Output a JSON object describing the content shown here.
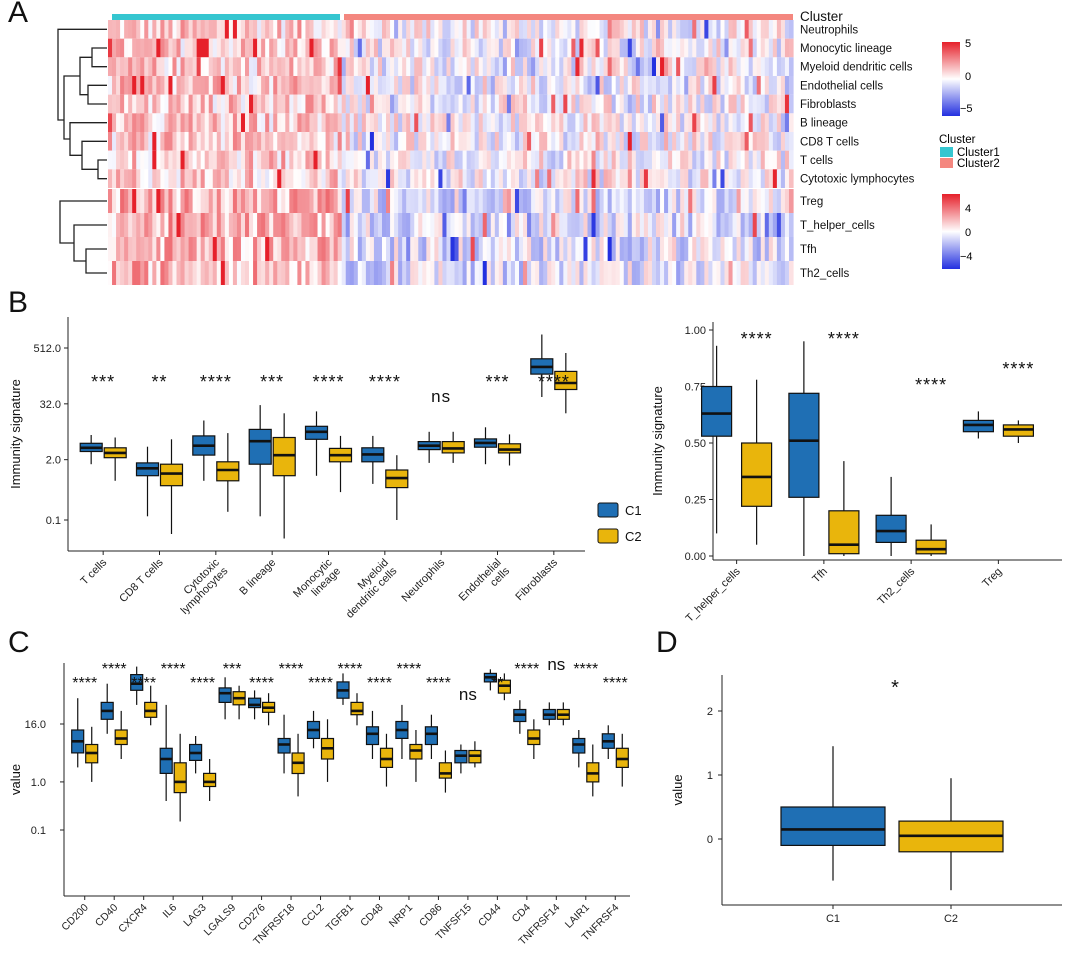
{
  "colors": {
    "c1": "#1f6fb4",
    "c2": "#e9b50c",
    "cluster1": "#35c6d0",
    "cluster2": "#f4877f",
    "heat_low": "#2330e0",
    "heat_mid": "#ffffff",
    "heat_high": "#e6202a"
  },
  "panels": {
    "a": "A",
    "b": "B",
    "c": "C",
    "d": "D"
  },
  "heatmap": {
    "cluster_title": "Cluster",
    "top_rows": [
      "Neutrophils",
      "Monocytic lineage",
      "Myeloid dendritic cells",
      "Endothelial cells",
      "Fibroblasts",
      "B lineage",
      "CD8 T cells",
      "T cells",
      "Cytotoxic lymphocytes"
    ],
    "bottom_rows": [
      "Treg",
      "T_helper_cells",
      "Tfh",
      "Th2_cells"
    ],
    "legend1_ticks": [
      "5",
      "0",
      "−5"
    ],
    "legend2_ticks": [
      "4",
      "0",
      "−4"
    ],
    "cluster_legend_title": "Cluster",
    "cluster_legend_items": [
      "Cluster1",
      "Cluster2"
    ]
  },
  "chart_data": [
    {
      "id": "B-left",
      "type": "box",
      "ylabel": "Immunity signature",
      "scale": "log",
      "yticks": [
        "512.0",
        "32.0",
        "2.0",
        "0.1"
      ],
      "ytick_values": [
        512,
        32,
        2,
        0.1
      ],
      "categories": [
        "T cells",
        "CD8 T cells",
        "Cytotoxic lymphocytes",
        "B lineage",
        "Monocytic lineage",
        "Myeloid dendritic cells",
        "Neutrophils",
        "Endothelial cells",
        "Fibroblasts"
      ],
      "xtick_labels": [
        [
          "T cells"
        ],
        [
          "CD8 T cells"
        ],
        [
          "Cytotoxic",
          "lymphocytes"
        ],
        [
          "B lineage"
        ],
        [
          "Monocytic",
          "lineage"
        ],
        [
          "Myeloid",
          "dendritic cells"
        ],
        [
          "Neutrophils"
        ],
        [
          "Endothelial",
          "cells"
        ],
        [
          "Fibroblasts"
        ]
      ],
      "significance": [
        "***",
        "**",
        "****",
        "***",
        "****",
        "****",
        "ns",
        "***",
        "****"
      ],
      "legend": [
        "C1",
        "C2"
      ],
      "series": [
        {
          "name": "C1",
          "boxes": [
            [
              1.6,
              3.0,
              3.6,
              4.5,
              6.8
            ],
            [
              0.12,
              0.9,
              1.3,
              1.7,
              3.8
            ],
            [
              0.7,
              2.5,
              4.0,
              6.5,
              14
            ],
            [
              0.12,
              1.6,
              5.0,
              9.0,
              30
            ],
            [
              0.9,
              5.5,
              8.0,
              10.5,
              22
            ],
            [
              0.6,
              1.8,
              2.6,
              3.6,
              6.5
            ],
            [
              1.7,
              3.3,
              4.0,
              4.9,
              8
            ],
            [
              1.6,
              3.7,
              4.6,
              5.6,
              10
            ],
            [
              45,
              140,
              200,
              300,
              1000
            ]
          ]
        },
        {
          "name": "C2",
          "boxes": [
            [
              0.7,
              2.2,
              2.8,
              3.6,
              6.0
            ],
            [
              0.05,
              0.55,
              1.0,
              1.6,
              5.5
            ],
            [
              0.15,
              0.7,
              1.2,
              1.8,
              7.5
            ],
            [
              0.04,
              0.9,
              2.5,
              6.0,
              20
            ],
            [
              0.4,
              1.8,
              2.5,
              3.5,
              6.5
            ],
            [
              0.1,
              0.5,
              0.8,
              1.2,
              2.5
            ],
            [
              1.7,
              2.8,
              3.5,
              4.9,
              8
            ],
            [
              1.5,
              2.8,
              3.3,
              4.4,
              7
            ],
            [
              20,
              65,
              90,
              160,
              400
            ]
          ]
        }
      ]
    },
    {
      "id": "B-right",
      "type": "box",
      "ylabel": "Immunity signature",
      "yticks": [
        "0.00",
        "0.25",
        "0.50",
        "0.75",
        "1.00"
      ],
      "ytick_values": [
        0,
        0.25,
        0.5,
        0.75,
        1.0
      ],
      "categories": [
        "T_helper_cells",
        "Tfh",
        "Th2_cells",
        "Treg"
      ],
      "significance": [
        "****",
        "****",
        "****",
        "****"
      ],
      "series": [
        {
          "name": "C1",
          "boxes": [
            [
              0.1,
              0.53,
              0.63,
              0.75,
              0.93
            ],
            [
              0.0,
              0.26,
              0.51,
              0.72,
              0.95
            ],
            [
              0.0,
              0.06,
              0.11,
              0.18,
              0.35
            ],
            [
              0.52,
              0.55,
              0.58,
              0.6,
              0.64
            ]
          ]
        },
        {
          "name": "C2",
          "boxes": [
            [
              0.05,
              0.22,
              0.35,
              0.5,
              0.78
            ],
            [
              0.0,
              0.01,
              0.05,
              0.2,
              0.42
            ],
            [
              0.0,
              0.01,
              0.03,
              0.07,
              0.14
            ],
            [
              0.5,
              0.53,
              0.56,
              0.58,
              0.6
            ]
          ]
        }
      ]
    },
    {
      "id": "C",
      "type": "box",
      "ylabel": "value",
      "scale": "log",
      "yticks": [
        "16.0",
        "1.0",
        "0.1"
      ],
      "ytick_values": [
        16,
        1,
        0.1
      ],
      "categories": [
        "CD200",
        "CD40",
        "CXCR4",
        "IL6",
        "LAG3",
        "LGALS9",
        "CD276",
        "TNFRSF18",
        "CCL2",
        "TGFB1",
        "CD48",
        "NRP1",
        "CD86",
        "TNFSF15",
        "CD44",
        "CD4",
        "TNFRSF14",
        "LAIR1",
        "TNFRSF4"
      ],
      "significance": [
        "****",
        "****",
        "****",
        "****",
        "****",
        "***",
        "****",
        "****",
        "****",
        "****",
        "****",
        "****",
        "****",
        "ns",
        "**",
        "****",
        "ns",
        "****",
        "****"
      ],
      "series": [
        {
          "name": "C1",
          "boxes": [
            [
              2,
              4,
              7,
              12,
              55
            ],
            [
              10,
              20,
              30,
              45,
              110
            ],
            [
              40,
              80,
              110,
              170,
              250
            ],
            [
              0.4,
              1.5,
              3,
              5,
              40
            ],
            [
              1.5,
              2.8,
              4,
              6,
              9
            ],
            [
              20,
              45,
              70,
              90,
              150
            ],
            [
              20,
              35,
              40,
              55,
              80
            ],
            [
              1.5,
              4,
              6,
              8,
              25
            ],
            [
              5,
              8,
              12,
              18,
              30
            ],
            [
              40,
              55,
              80,
              120,
              180
            ],
            [
              3,
              6,
              10,
              14,
              30
            ],
            [
              3,
              8,
              12,
              18,
              40
            ],
            [
              3,
              6,
              10,
              14,
              25
            ],
            [
              1.5,
              2.5,
              3.5,
              4.5,
              6
            ],
            [
              80,
              120,
              150,
              180,
              220
            ],
            [
              10,
              18,
              25,
              32,
              50
            ],
            [
              15,
              20,
              25,
              32,
              45
            ],
            [
              2,
              4,
              6,
              8,
              12
            ],
            [
              3,
              5,
              7,
              10,
              15
            ]
          ]
        },
        {
          "name": "C2",
          "boxes": [
            [
              1,
              2.5,
              4,
              6,
              14
            ],
            [
              3,
              6,
              8,
              12,
              30
            ],
            [
              15,
              22,
              30,
              45,
              100
            ],
            [
              0.15,
              0.6,
              1,
              2.5,
              10
            ],
            [
              0.4,
              0.8,
              1,
              1.5,
              3
            ],
            [
              20,
              40,
              55,
              75,
              100
            ],
            [
              15,
              28,
              35,
              45,
              70
            ],
            [
              0.5,
              1.5,
              2.5,
              4,
              10
            ],
            [
              1,
              3,
              5,
              8,
              20
            ],
            [
              15,
              25,
              30,
              45,
              70
            ],
            [
              0.8,
              2,
              3,
              5,
              10
            ],
            [
              1,
              3,
              4.5,
              6,
              12
            ],
            [
              0.6,
              1.2,
              1.5,
              2.5,
              4.5
            ],
            [
              2,
              2.5,
              3.5,
              4.5,
              7
            ],
            [
              50,
              70,
              100,
              130,
              180
            ],
            [
              3,
              6,
              8,
              12,
              20
            ],
            [
              15,
              20,
              25,
              32,
              45
            ],
            [
              0.5,
              1.0,
              1.5,
              2.5,
              6
            ],
            [
              0.8,
              2,
              3,
              5,
              10
            ]
          ]
        }
      ]
    },
    {
      "id": "D",
      "type": "box",
      "ylabel": "value",
      "yticks": [
        "2",
        "1",
        "0"
      ],
      "ytick_values": [
        2,
        1,
        0
      ],
      "categories": [
        "C1",
        "C2"
      ],
      "significance": "*",
      "series": [
        {
          "name": "C1",
          "box": [
            -0.65,
            -0.1,
            0.15,
            0.5,
            1.45
          ]
        },
        {
          "name": "C2",
          "box": [
            -0.8,
            -0.2,
            0.05,
            0.28,
            0.95
          ]
        }
      ]
    }
  ]
}
